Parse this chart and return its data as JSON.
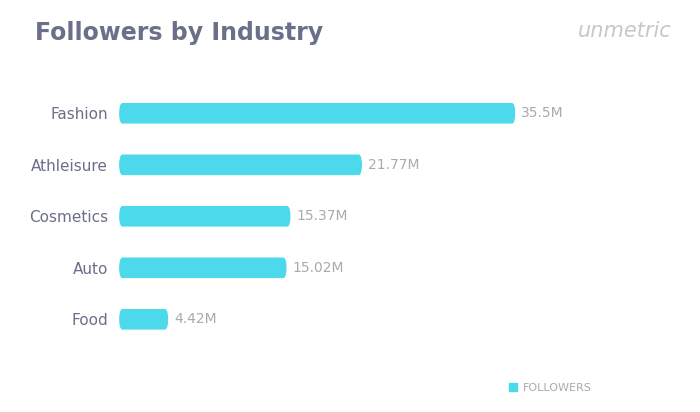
{
  "title": "Followers by Industry",
  "watermark": "unmetric",
  "categories": [
    "Food",
    "Auto",
    "Cosmetics",
    "Athleisure",
    "Fashion"
  ],
  "values": [
    4.42,
    15.02,
    15.37,
    21.77,
    35.5
  ],
  "labels": [
    "4.42M",
    "15.02M",
    "15.37M",
    "21.77M",
    "35.5M"
  ],
  "bar_color": "#4DD9EC",
  "label_color": "#aaaaaa",
  "title_color": "#6b6f8a",
  "watermark_color": "#c8c8c8",
  "legend_label": "FOLLOWERS",
  "background_color": "#ffffff",
  "xlim": [
    0,
    42
  ],
  "bar_height": 0.38,
  "title_fontsize": 17,
  "label_fontsize": 10,
  "tick_fontsize": 11,
  "legend_fontsize": 8,
  "watermark_fontsize": 15
}
